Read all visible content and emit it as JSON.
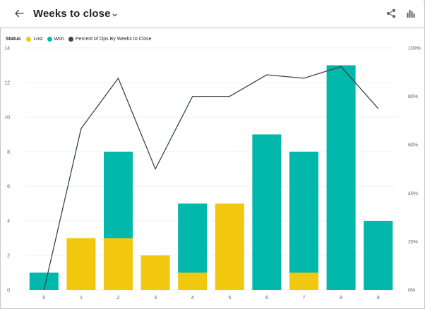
{
  "header": {
    "title": "Weeks to close",
    "back_icon": "arrow-left-icon",
    "share_icon": "share-icon",
    "chart_icon": "bar-chart-icon"
  },
  "legend": {
    "title": "Status",
    "items": [
      {
        "label": "Lost",
        "color": "#F2C80F"
      },
      {
        "label": "Won",
        "color": "#01B8AA"
      },
      {
        "label": "Percent of Ops By Weeks to Close",
        "color": "#374649"
      }
    ]
  },
  "chart_data": {
    "type": "bar",
    "stacked": true,
    "categories": [
      "0",
      "1",
      "2",
      "3",
      "4",
      "5",
      "6",
      "7",
      "8",
      "9"
    ],
    "series": [
      {
        "name": "Lost",
        "color": "#F2C80F",
        "values": [
          0,
          3,
          3,
          2,
          1,
          5,
          0,
          1,
          0,
          0
        ]
      },
      {
        "name": "Won",
        "color": "#01B8AA",
        "values": [
          1,
          0,
          5,
          0,
          4,
          0,
          9,
          7,
          13,
          4
        ]
      },
      {
        "name": "Percent of Ops By Weeks to Close",
        "type": "line",
        "axis": "secondary",
        "color": "#374649",
        "values": [
          0,
          66.7,
          87.5,
          50,
          80,
          80,
          88.9,
          87.5,
          92.3,
          75
        ]
      }
    ],
    "y_ticks": [
      "0",
      "2",
      "4",
      "6",
      "8",
      "10",
      "12",
      "14"
    ],
    "y2_ticks": [
      "0%",
      "20%",
      "40%",
      "60%",
      "80%",
      "100%"
    ],
    "ylim": [
      0,
      14
    ],
    "y2lim": [
      0,
      100
    ],
    "grid": true,
    "legend_position": "top-left"
  }
}
